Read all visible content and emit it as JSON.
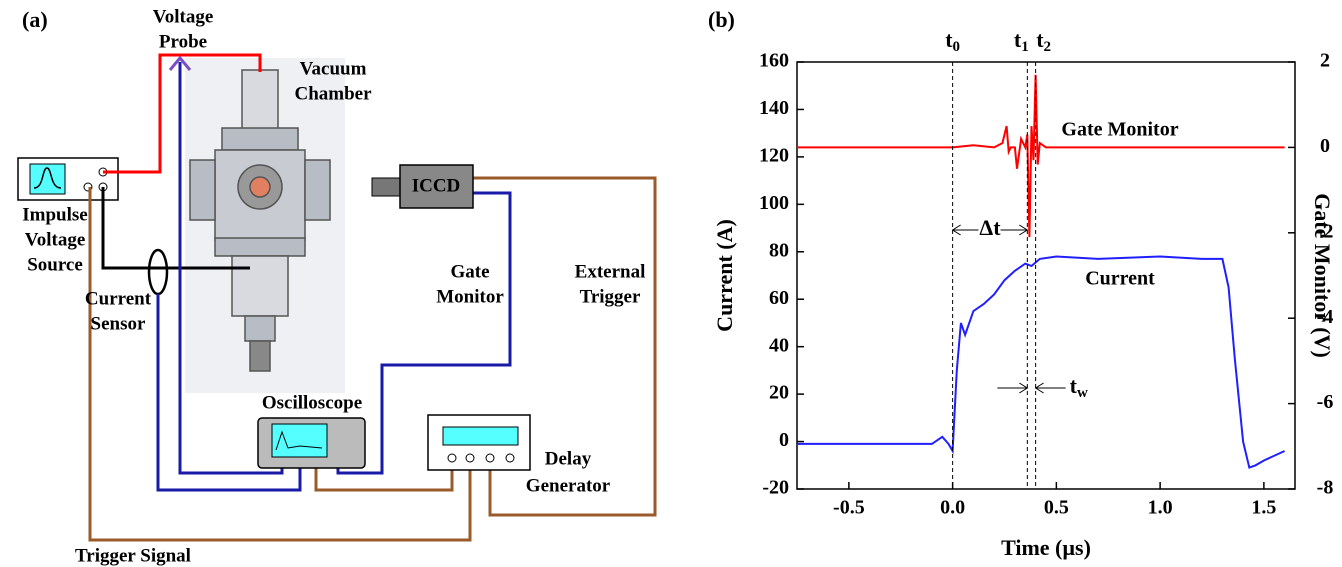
{
  "diagram": {
    "panel": "(a)",
    "labels": {
      "probe": [
        "Voltage",
        "Probe"
      ],
      "chamber": [
        "Vacuum",
        "Chamber"
      ],
      "source": [
        "Impulse",
        "Voltage",
        "Source"
      ],
      "sensor": [
        "Current",
        "Sensor"
      ],
      "iccd": "ICCD",
      "gate": [
        "Gate",
        "Monitor"
      ],
      "external": [
        "External",
        "Trigger"
      ],
      "scope": "Oscilloscope",
      "delay": [
        "Delay",
        "Generator"
      ],
      "trigger": "Trigger Signal"
    }
  },
  "chart_data": {
    "type": "line",
    "panel": "(b)",
    "xlabel": "Time (µs)",
    "ylabel": "Current (A)",
    "y2label": "Gate Monitor (V)",
    "xlim": [
      -0.75,
      1.65
    ],
    "xticks": [
      -0.5,
      {
        "value": 0,
        "label": "0.0"
      },
      0.5,
      {
        "value": 1,
        "label": "1.0"
      },
      1.5
    ],
    "ylim": [
      -20,
      160
    ],
    "yticks": [
      -20,
      0,
      20,
      40,
      60,
      80,
      100,
      120,
      140,
      160
    ],
    "y2lim": [
      -8,
      2
    ],
    "y2ticks": [
      -8,
      -6,
      -4,
      -2,
      0,
      2
    ],
    "series": [
      {
        "name": "Current",
        "color": "#1f1fff",
        "x": [
          -0.75,
          -0.4,
          -0.1,
          -0.05,
          -0.02,
          0,
          0.02,
          0.04,
          0.06,
          0.1,
          0.15,
          0.2,
          0.25,
          0.3,
          0.35,
          0.38,
          0.42,
          0.5,
          0.7,
          1.0,
          1.2,
          1.3,
          1.33,
          1.36,
          1.4,
          1.43,
          1.46,
          1.5,
          1.6
        ],
        "values": [
          -1,
          -1,
          -1,
          2,
          -1,
          -4,
          30,
          50,
          45,
          55,
          58,
          62,
          68,
          72,
          75,
          74,
          77,
          78,
          77,
          78,
          77,
          77,
          65,
          35,
          0,
          -11,
          -10,
          -8,
          -4
        ]
      },
      {
        "name": "Gate Monitor",
        "color": "#ff0000",
        "axis": "y2",
        "x": [
          -0.75,
          -0.4,
          -0.2,
          0,
          0.1,
          0.2,
          0.24,
          0.26,
          0.27,
          0.28,
          0.3,
          0.31,
          0.33,
          0.35,
          0.36,
          0.37,
          0.38,
          0.39,
          0.4,
          0.41,
          0.42,
          0.45,
          0.6,
          1.0,
          1.6
        ],
        "values": [
          0,
          0,
          0,
          0,
          0.05,
          0,
          0.1,
          0.5,
          -0.1,
          0,
          0,
          -0.5,
          0.2,
          0,
          0.3,
          -2.1,
          0.5,
          -0.3,
          1.7,
          -0.4,
          0.1,
          0,
          0,
          0,
          0
        ]
      }
    ],
    "markers": [
      {
        "x": 0,
        "label": "t",
        "sub": "0"
      },
      {
        "x": 0.36,
        "label": "t",
        "sub": "1"
      },
      {
        "x": 0.4,
        "label": "t",
        "sub": "2"
      }
    ],
    "annotations": {
      "dt": "Δt",
      "tw": "t",
      "tw_sub": "w"
    }
  }
}
